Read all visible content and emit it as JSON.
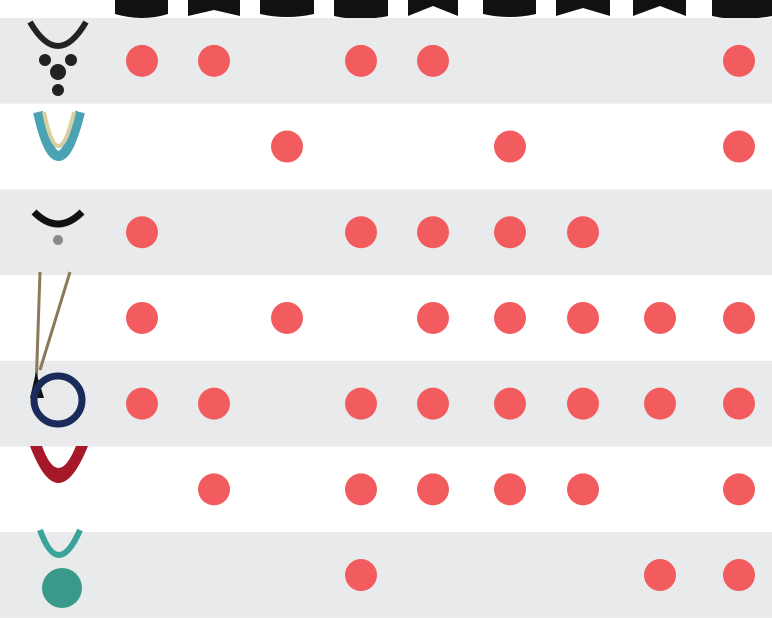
{
  "grid": {
    "dot_color": "#f25c5f",
    "rows": [
      {
        "dots": [
          1,
          1,
          0,
          1,
          1,
          0,
          0,
          0,
          1
        ]
      },
      {
        "dots": [
          0,
          0,
          1,
          0,
          0,
          1,
          0,
          0,
          1
        ]
      },
      {
        "dots": [
          1,
          0,
          0,
          1,
          1,
          1,
          1,
          0,
          0
        ]
      },
      {
        "dots": [
          1,
          0,
          1,
          0,
          1,
          1,
          1,
          1,
          1
        ]
      },
      {
        "dots": [
          1,
          1,
          0,
          1,
          1,
          1,
          1,
          1,
          1
        ]
      },
      {
        "dots": [
          0,
          1,
          0,
          1,
          1,
          1,
          1,
          0,
          1
        ]
      },
      {
        "dots": [
          0,
          0,
          0,
          1,
          0,
          0,
          0,
          1,
          1
        ]
      }
    ]
  }
}
